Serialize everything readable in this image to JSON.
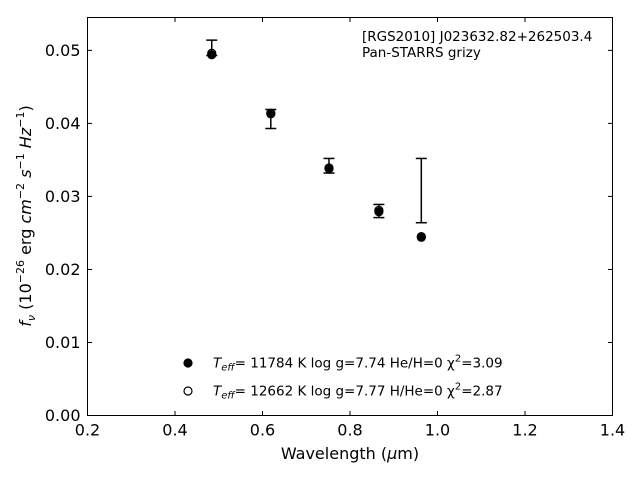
{
  "chart_data": {
    "type": "scatter",
    "annotation_lines": [
      "[RGS2010] J023632.82+262503.4",
      "Pan-STARRS grizy"
    ],
    "xlabel": "Wavelength (μm)",
    "ylabel": "f_ν (10^-26 erg cm^-2 s^-1 Hz^-1)",
    "xlim": [
      0.2,
      1.4
    ],
    "ylim": [
      0.0,
      0.0545
    ],
    "xticks": [
      0.2,
      0.4,
      0.6,
      0.8,
      1.0,
      1.2,
      1.4
    ],
    "xtick_labels": [
      "0.2",
      "0.4",
      "0.6",
      "0.8",
      "1.0",
      "1.2",
      "1.4"
    ],
    "yticks": [
      0.0,
      0.01,
      0.02,
      0.03,
      0.04,
      0.05
    ],
    "ytick_labels": [
      "0.00",
      "0.01",
      "0.02",
      "0.03",
      "0.04",
      "0.05"
    ],
    "grid": false,
    "legend_position": "bottom-center",
    "observed": {
      "x": [
        0.484,
        0.619,
        0.752,
        0.866,
        0.963
      ],
      "y": [
        0.0501,
        0.041,
        0.0342,
        0.028,
        0.0309
      ],
      "yerr_low": [
        0.0493,
        0.0393,
        0.0332,
        0.0271,
        0.0264
      ],
      "yerr_high": [
        0.0514,
        0.0419,
        0.0352,
        0.0289,
        0.0352
      ]
    },
    "series": [
      {
        "name": "T_eff= 11784 K  log g=7.74  He/H=0  χ²=3.09",
        "marker": "filled-circle",
        "x": [
          0.484,
          0.619,
          0.752,
          0.866,
          0.963
        ],
        "y": [
          0.0494,
          0.0414,
          0.0339,
          0.0279,
          0.0245
        ]
      },
      {
        "name": "T_eff= 12662 K  log g=7.77  H/He=0  χ²=2.87",
        "marker": "open-circle",
        "x": [
          0.484,
          0.619,
          0.752,
          0.866,
          0.963
        ],
        "y": [
          0.0496,
          0.0413,
          0.0338,
          0.0281,
          0.0244
        ]
      }
    ],
    "legend": [
      {
        "marker": "filled",
        "teff_label": "T",
        "teff_sub": "eff",
        "rest": "= 11784 K  log g=7.74  He/H=0  χ",
        "sup": "2",
        "tail": "=3.09"
      },
      {
        "marker": "open",
        "teff_label": "T",
        "teff_sub": "eff",
        "rest": "= 12662 K  log g=7.77  H/He=0  χ",
        "sup": "2",
        "tail": "=2.87"
      }
    ],
    "colors": {
      "marker": "#000000",
      "axes": "#000000",
      "background": "#ffffff"
    }
  }
}
